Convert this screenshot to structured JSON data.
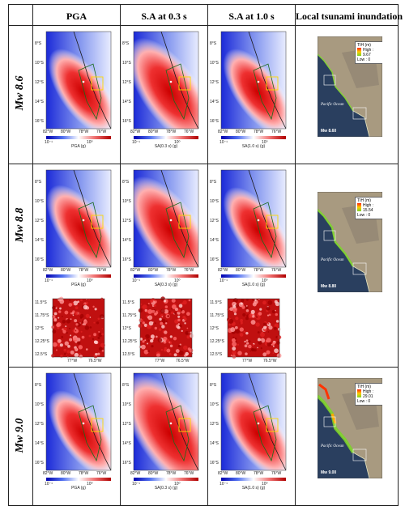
{
  "headers": {
    "col1": "PGA",
    "col2": "S.A at 0.3 s",
    "col3": "S.A at 1.0 s",
    "col4": "Local tsunami inundation"
  },
  "rows": [
    {
      "label": "Mw 8.6",
      "tsunami_high": "High : 9.67",
      "tsunami_low": "Low : 0",
      "mw_tag": "Mw 8.60"
    },
    {
      "label": "Mw 8.8",
      "tsunami_high": "High : 15.54",
      "tsunami_low": "Low : 0",
      "mw_tag": "Mw 8.80"
    },
    {
      "label": "Mw 9.0",
      "tsunami_high": "High : 29.01",
      "tsunami_low": "Low : 0",
      "mw_tag": "Mw 9.00"
    }
  ],
  "map_lat_ticks": [
    "8°S",
    "10°S",
    "12°S",
    "14°S",
    "16°S"
  ],
  "map_lon_ticks": [
    "82°W",
    "80°W",
    "78°W",
    "76°W"
  ],
  "colorbar_ticks": [
    "10⁻¹",
    "10⁰"
  ],
  "colorbar_titles": [
    "PGA (g)",
    "SA(0.3 s) (g)",
    "SA(1.0 s) (g)"
  ],
  "zoom_lat_ticks": [
    "11.5°S",
    "11.75°S",
    "12°S",
    "12.25°S",
    "12.5°S"
  ],
  "zoom_lon_ticks": [
    "77°W",
    "76.5°W"
  ],
  "tsunami_legend_title": "TIH (m)",
  "ocean_label": "Pacific Ocean",
  "colors": {
    "hazard_high": "#d40000",
    "hazard_low": "#ffffff",
    "ocean": "#2a3f5f",
    "land": "#a89a80"
  }
}
